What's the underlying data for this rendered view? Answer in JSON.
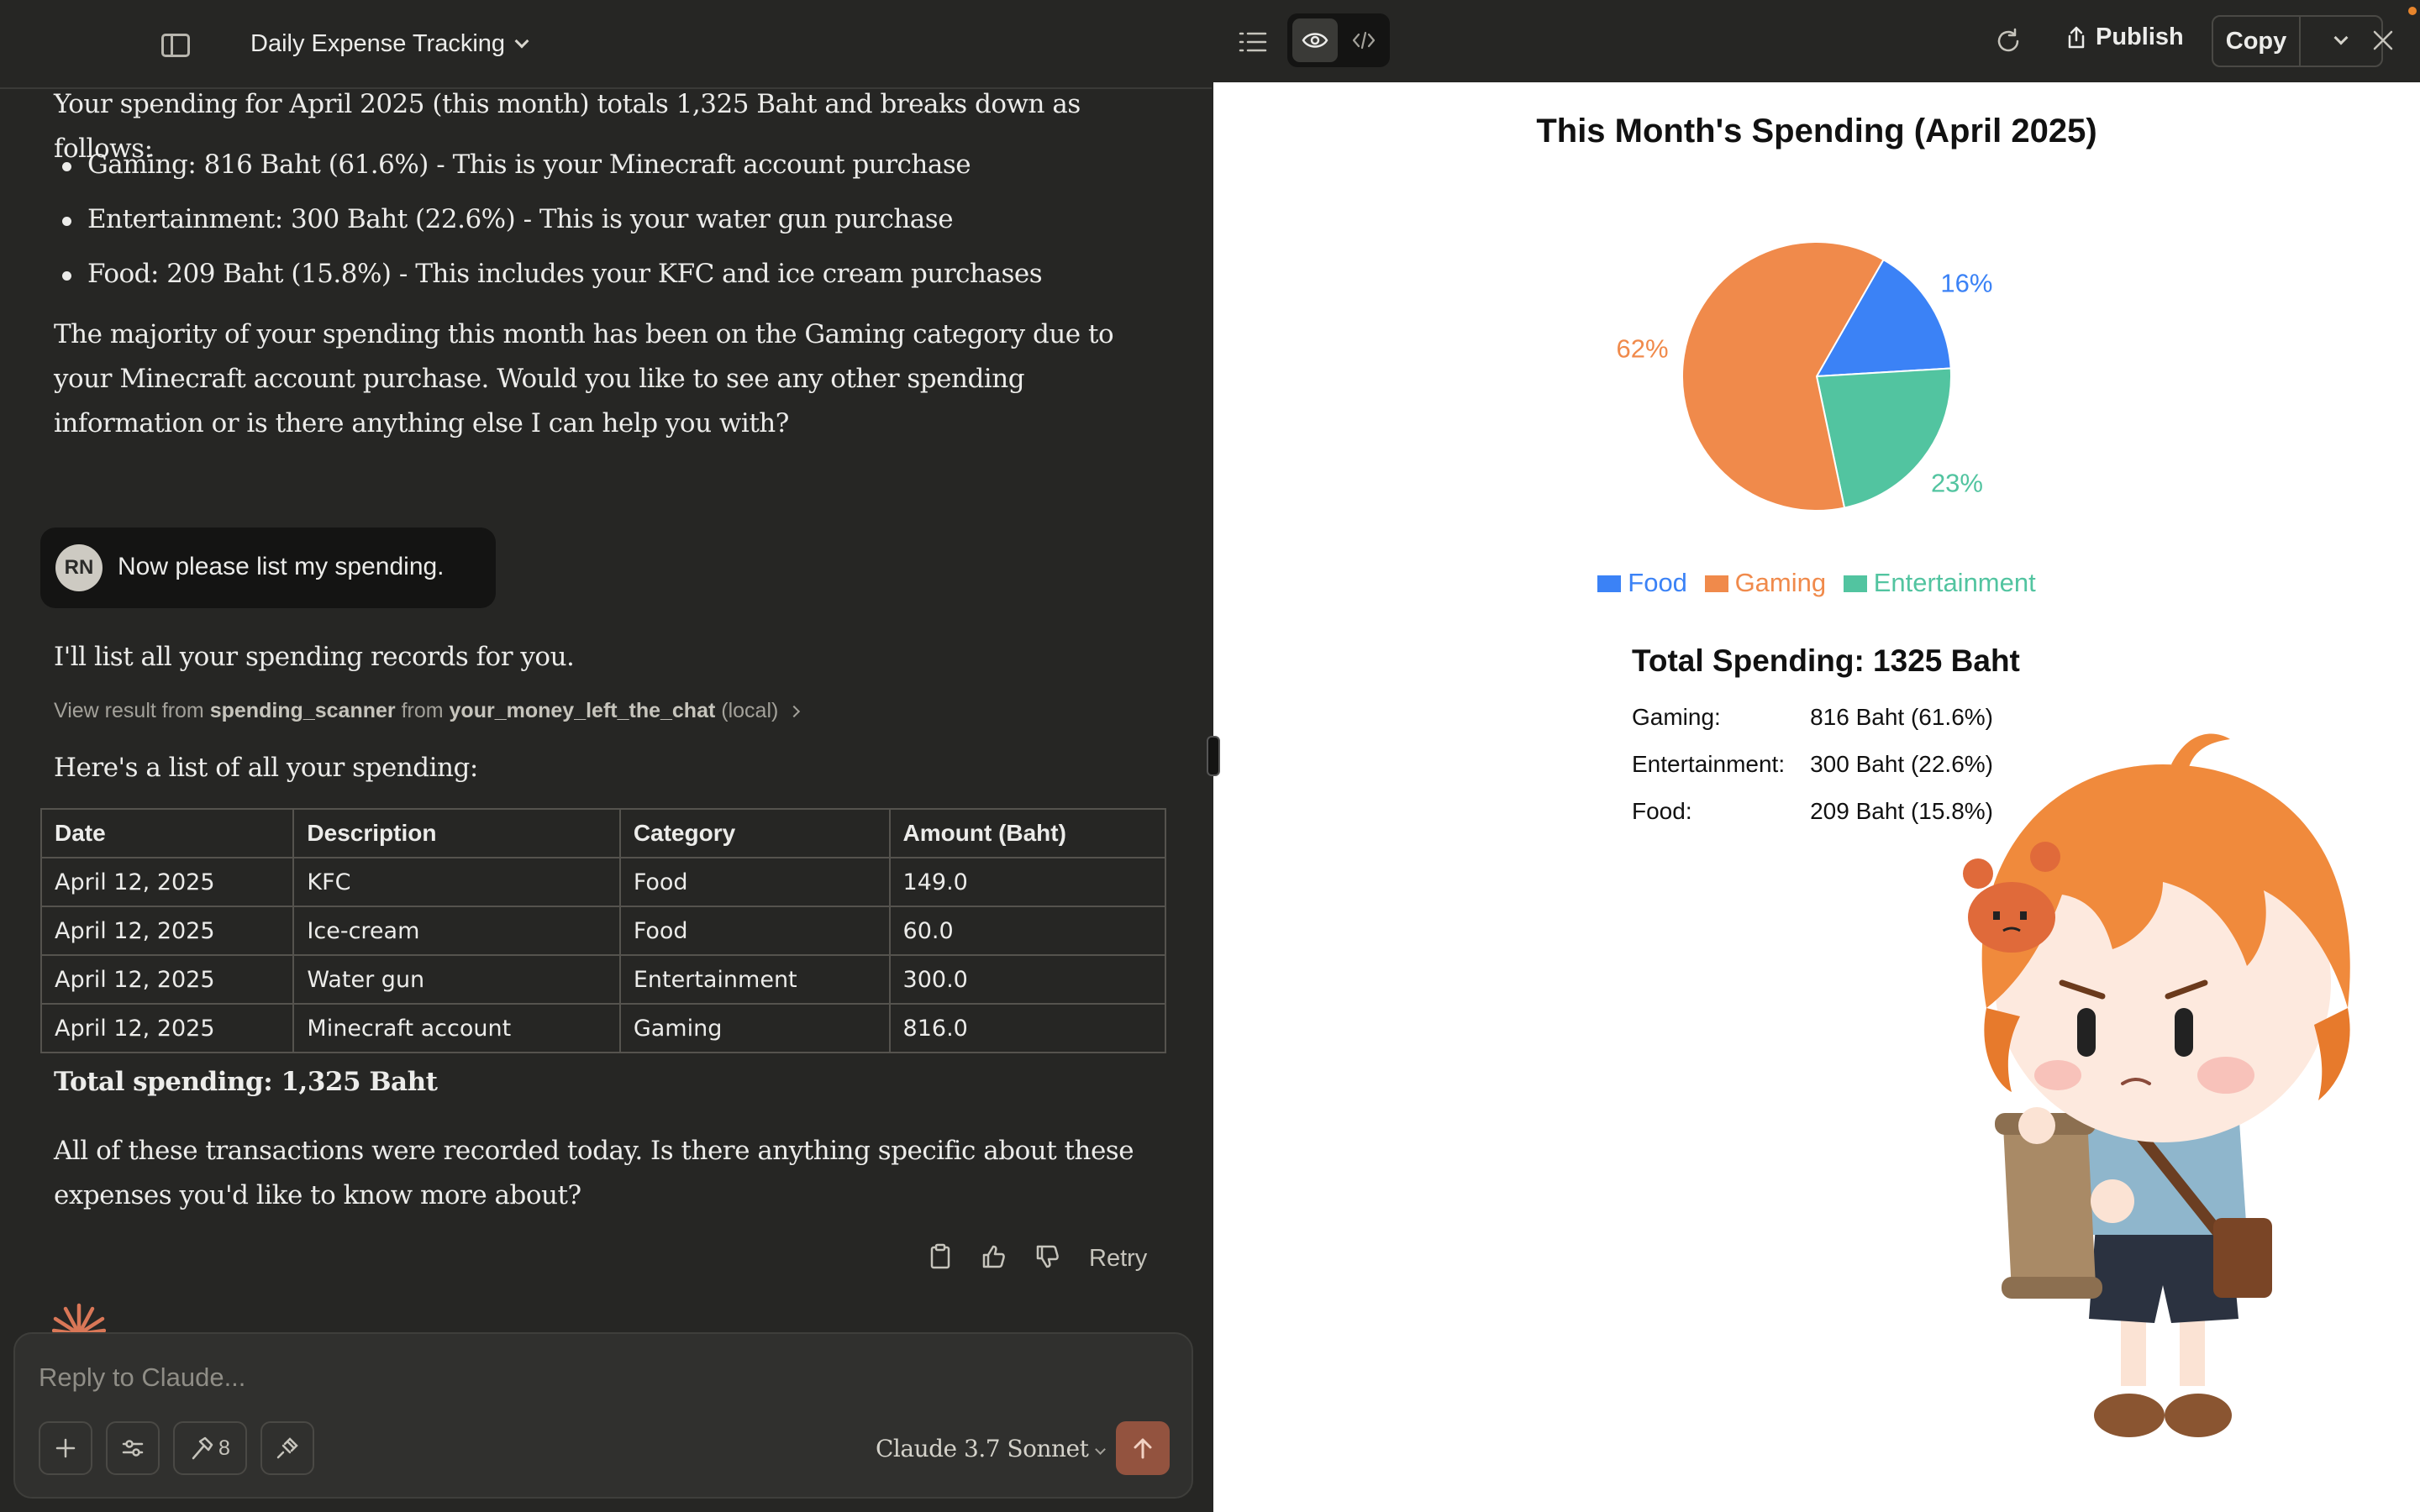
{
  "chat": {
    "title": "Daily Expense Tracking",
    "assistant_intro": "Your spending for April 2025 (this month) totals 1,325 Baht and breaks down as follows:",
    "bullets": [
      "Gaming: 816 Baht (61.6%) - This is your Minecraft account purchase",
      "Entertainment: 300 Baht (22.6%) - This is your water gun purchase",
      "Food: 209 Baht (15.8%) - This includes your KFC and ice cream purchases"
    ],
    "assistant_summary_lines": [
      "The majority of your spending this month has been on the Gaming category due to",
      "your Minecraft account purchase. Would you like to see any other spending",
      "information or is there anything else I can help you with?"
    ],
    "user_initials": "RN",
    "user_message": "Now please list my spending.",
    "assistant_list_intro": "I'll list all your spending records for you.",
    "tool_result": {
      "prefix": "View result from",
      "tool": "spending_scanner",
      "from_word": "from",
      "server": "your_money_left_the_chat",
      "suffix": "(local)"
    },
    "list_heading": "Here's a list of all your spending:",
    "table": {
      "headers": [
        "Date",
        "Description",
        "Category",
        "Amount (Baht)"
      ],
      "rows": [
        [
          "April 12, 2025",
          "KFC",
          "Food",
          "149.0"
        ],
        [
          "April 12, 2025",
          "Ice-cream",
          "Food",
          "60.0"
        ],
        [
          "April 12, 2025",
          "Water gun",
          "Entertainment",
          "300.0"
        ],
        [
          "April 12, 2025",
          "Minecraft account",
          "Gaming",
          "816.0"
        ]
      ]
    },
    "total_spending": "Total spending: 1,325 Baht",
    "closing_lines": [
      "All of these transactions were recorded today. Is there anything specific about these",
      "expenses you'd like to know more about?"
    ],
    "actions": {
      "copy_icon": "clipboard-icon",
      "thumbs_up_icon": "thumbs-up-icon",
      "thumbs_down_icon": "thumbs-down-icon",
      "retry_label": "Retry"
    }
  },
  "input": {
    "placeholder": "Reply to Claude...",
    "tools_count": "8",
    "model_name": "Claude 3.7 Sonnet",
    "send_icon": "arrow-up-icon"
  },
  "artifact": {
    "toolbar": {
      "publish_label": "Publish",
      "copy_label": "Copy"
    },
    "title": "This Month's Spending (April 2025)",
    "legend": [
      "Food",
      "Gaming",
      "Entertainment"
    ],
    "summary": {
      "title": "Total Spending: 1325 Baht",
      "rows": [
        {
          "label": "Gaming:",
          "value": "816 Baht (61.6%)"
        },
        {
          "label": "Entertainment:",
          "value": "300 Baht (22.6%)"
        },
        {
          "label": "Food:",
          "value": "209 Baht (15.8%)"
        }
      ]
    },
    "colors": {
      "food": "#3b82f6",
      "gaming": "#f08a4b",
      "entertainment": "#52c4a0"
    }
  },
  "chart_data": {
    "type": "pie",
    "title": "This Month's Spending (April 2025)",
    "categories": [
      "Food",
      "Gaming",
      "Entertainment"
    ],
    "values": [
      209,
      816,
      300
    ],
    "percent_labels": [
      "16%",
      "62%",
      "23%"
    ],
    "colors": [
      "#3b82f6",
      "#f08a4b",
      "#52c4a0"
    ],
    "legend_position": "bottom"
  }
}
